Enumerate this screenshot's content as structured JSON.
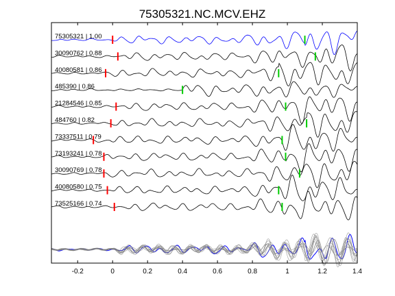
{
  "chart_data": {
    "type": "line",
    "title": "75305321.NC.MCV.EHZ",
    "xlabel": "",
    "ylabel": "",
    "xlim": [
      -0.35,
      1.4
    ],
    "x_ticks": [
      -0.2,
      0,
      0.2,
      0.4,
      0.6,
      0.8,
      1,
      1.2,
      1.4
    ],
    "x_tick_labels": [
      "-0.2",
      "0",
      "0.2",
      "0.4",
      "0.6",
      "0.8",
      "1",
      "1.2",
      "1.4"
    ],
    "grid": false,
    "colors": {
      "master": "#0000ff",
      "trace": "#000000",
      "stack": "#808080",
      "p_pick": "#ff0000",
      "s_pick": "#00cc00"
    },
    "traces": [
      {
        "label": "75305321 | 1.00",
        "p_pick": 0.0,
        "s_pick": 1.1,
        "color": "master"
      },
      {
        "label": "30090762 | 0.88",
        "p_pick": 0.03,
        "s_pick": 1.16,
        "color": "trace"
      },
      {
        "label": "40080581 | 0.86",
        "p_pick": -0.04,
        "s_pick": 0.95,
        "color": "trace"
      },
      {
        "label": "485390 | 0.86",
        "p_pick": null,
        "s_pick": 0.4,
        "color": "trace"
      },
      {
        "label": "21284546 | 0.85",
        "p_pick": 0.02,
        "s_pick": 0.99,
        "color": "trace"
      },
      {
        "label": "484760 | 0.82",
        "p_pick": -0.01,
        "s_pick": 1.11,
        "color": "trace"
      },
      {
        "label": "73337511 | 0.79",
        "p_pick": -0.11,
        "s_pick": 0.97,
        "color": "trace"
      },
      {
        "label": "73193241 | 0.78",
        "p_pick": -0.05,
        "s_pick": 0.99,
        "color": "trace"
      },
      {
        "label": "30090769 | 0.78",
        "p_pick": -0.05,
        "s_pick": 1.07,
        "color": "trace"
      },
      {
        "label": "40080580 | 0.75",
        "p_pick": -0.03,
        "s_pick": 0.95,
        "color": "trace"
      },
      {
        "label": "73525166 | 0.74",
        "p_pick": 0.01,
        "s_pick": 0.97,
        "color": "trace"
      }
    ],
    "stack": {
      "label": "",
      "description_hidden": true
    }
  }
}
